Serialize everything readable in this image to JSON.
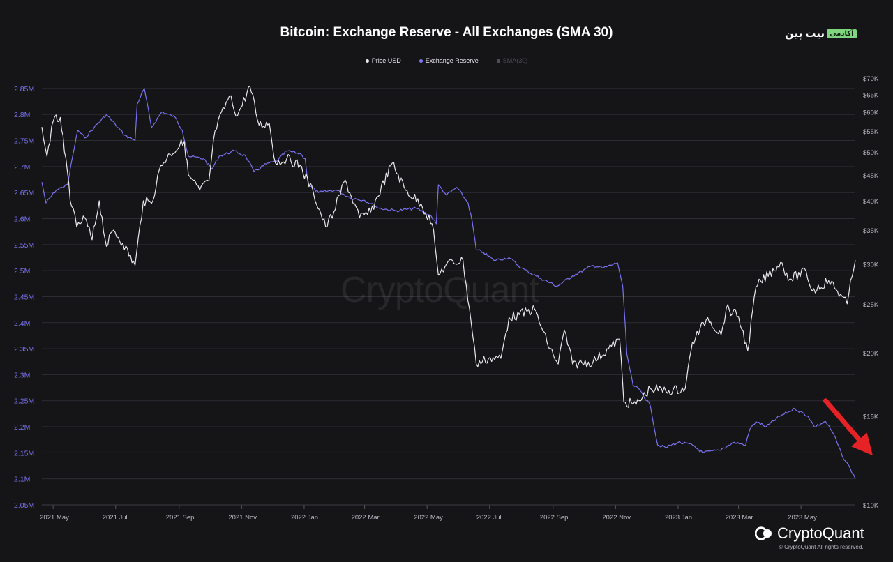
{
  "header": {
    "title": "Bitcoin: Exchange Reserve - All Exchanges (SMA 30)",
    "brand_name": "بیت پین",
    "brand_tag": "آکادمی"
  },
  "watermark": "CryptoQuant",
  "footer": {
    "logo_text": "CryptoQuant",
    "copyright": "© CryptoQuant All rights reserved."
  },
  "colors": {
    "background": "#151518",
    "price": "#e9e9ee",
    "reserve": "#7a73f0",
    "sma": "#4d4d56",
    "grid": "#2c2c33",
    "arrow": "#e52326"
  },
  "chart_data": {
    "type": "line",
    "title": "Bitcoin: Exchange Reserve - All Exchanges (SMA 30)",
    "x_ticks": [
      "2021 May",
      "2021 Jul",
      "2021 Sep",
      "2021 Nov",
      "2022 Jan",
      "2022 Mar",
      "2022 May",
      "2022 Jul",
      "2022 Sep",
      "2022 Nov",
      "2023 Jan",
      "2023 Mar",
      "2023 May"
    ],
    "x_range": [
      "2021-04-20",
      "2023-06-23"
    ],
    "y_left_ticks": [
      "2.05M",
      "2.1M",
      "2.15M",
      "2.2M",
      "2.25M",
      "2.3M",
      "2.35M",
      "2.4M",
      "2.45M",
      "2.5M",
      "2.55M",
      "2.6M",
      "2.65M",
      "2.7M",
      "2.75M",
      "2.8M",
      "2.85M"
    ],
    "y_left_range": [
      2050000,
      2870000
    ],
    "y_right_ticks": [
      "$10K",
      "$15K",
      "$20K",
      "$25K",
      "$30K",
      "$35K",
      "$40K",
      "$45K",
      "$50K",
      "$55K",
      "$60K",
      "$65K",
      "$70K"
    ],
    "y_right_ticks_values": [
      10000,
      15000,
      20000,
      25000,
      30000,
      35000,
      40000,
      45000,
      50000,
      55000,
      60000,
      65000,
      70000
    ],
    "y_right_scale": "log",
    "y_right_range": [
      10000,
      70000
    ],
    "grid": true,
    "legend_position": "top-center",
    "series": [
      {
        "name": "Price USD",
        "axis": "right",
        "marker": "dot",
        "points": [
          [
            "2021-04-20",
            56000
          ],
          [
            "2021-04-25",
            49000
          ],
          [
            "2021-05-01",
            57500
          ],
          [
            "2021-05-08",
            58500
          ],
          [
            "2021-05-12",
            50000
          ],
          [
            "2021-05-19",
            39000
          ],
          [
            "2021-05-24",
            35500
          ],
          [
            "2021-06-01",
            37000
          ],
          [
            "2021-06-08",
            33500
          ],
          [
            "2021-06-15",
            40000
          ],
          [
            "2021-06-22",
            32500
          ],
          [
            "2021-06-29",
            35000
          ],
          [
            "2021-07-08",
            33000
          ],
          [
            "2021-07-20",
            29800
          ],
          [
            "2021-07-28",
            40000
          ],
          [
            "2021-08-05",
            39500
          ],
          [
            "2021-08-14",
            47000
          ],
          [
            "2021-08-23",
            49500
          ],
          [
            "2021-09-06",
            52500
          ],
          [
            "2021-09-10",
            45000
          ],
          [
            "2021-09-21",
            42000
          ],
          [
            "2021-09-30",
            43800
          ],
          [
            "2021-10-06",
            55000
          ],
          [
            "2021-10-20",
            64500
          ],
          [
            "2021-10-28",
            59000
          ],
          [
            "2021-11-09",
            67500
          ],
          [
            "2021-11-18",
            56500
          ],
          [
            "2021-11-28",
            57000
          ],
          [
            "2021-12-04",
            47500
          ],
          [
            "2021-12-15",
            48500
          ],
          [
            "2021-12-28",
            47000
          ],
          [
            "2022-01-10",
            41500
          ],
          [
            "2022-01-22",
            35500
          ],
          [
            "2022-01-30",
            38000
          ],
          [
            "2022-02-10",
            44000
          ],
          [
            "2022-02-24",
            37000
          ],
          [
            "2022-03-07",
            38000
          ],
          [
            "2022-03-28",
            47500
          ],
          [
            "2022-04-10",
            42000
          ],
          [
            "2022-04-25",
            39500
          ],
          [
            "2022-05-06",
            36000
          ],
          [
            "2022-05-10",
            31000
          ],
          [
            "2022-05-12",
            28500
          ],
          [
            "2022-05-20",
            30000
          ],
          [
            "2022-06-05",
            30500
          ],
          [
            "2022-06-13",
            23000
          ],
          [
            "2022-06-18",
            19000
          ],
          [
            "2022-06-30",
            19500
          ],
          [
            "2022-07-12",
            19500
          ],
          [
            "2022-07-20",
            23500
          ],
          [
            "2022-07-30",
            23800
          ],
          [
            "2022-08-14",
            24400
          ],
          [
            "2022-08-26",
            21000
          ],
          [
            "2022-09-06",
            19000
          ],
          [
            "2022-09-12",
            22200
          ],
          [
            "2022-09-20",
            19000
          ],
          [
            "2022-10-10",
            19200
          ],
          [
            "2022-10-28",
            20600
          ],
          [
            "2022-11-05",
            21300
          ],
          [
            "2022-11-09",
            16000
          ],
          [
            "2022-11-21",
            15800
          ],
          [
            "2022-12-05",
            17000
          ],
          [
            "2022-12-20",
            16800
          ],
          [
            "2023-01-08",
            17000
          ],
          [
            "2023-01-15",
            21000
          ],
          [
            "2023-01-30",
            23500
          ],
          [
            "2023-02-12",
            21700
          ],
          [
            "2023-02-17",
            24500
          ],
          [
            "2023-03-01",
            23600
          ],
          [
            "2023-03-10",
            20200
          ],
          [
            "2023-03-18",
            27000
          ],
          [
            "2023-04-11",
            30200
          ],
          [
            "2023-04-20",
            28000
          ],
          [
            "2023-05-06",
            29000
          ],
          [
            "2023-05-12",
            26500
          ],
          [
            "2023-05-28",
            27800
          ],
          [
            "2023-06-10",
            25900
          ],
          [
            "2023-06-15",
            25000
          ],
          [
            "2023-06-20",
            28400
          ],
          [
            "2023-06-23",
            30500
          ]
        ]
      },
      {
        "name": "Exchange Reserve",
        "axis": "left",
        "marker": "diamond",
        "points": [
          [
            "2021-04-20",
            2670000
          ],
          [
            "2021-04-24",
            2630000
          ],
          [
            "2021-05-04",
            2655000
          ],
          [
            "2021-05-15",
            2665000
          ],
          [
            "2021-05-20",
            2720000
          ],
          [
            "2021-05-25",
            2770000
          ],
          [
            "2021-06-01",
            2755000
          ],
          [
            "2021-06-10",
            2775000
          ],
          [
            "2021-06-22",
            2800000
          ],
          [
            "2021-07-01",
            2780000
          ],
          [
            "2021-07-10",
            2760000
          ],
          [
            "2021-07-20",
            2750000
          ],
          [
            "2021-07-22",
            2820000
          ],
          [
            "2021-07-29",
            2850000
          ],
          [
            "2021-08-05",
            2775000
          ],
          [
            "2021-08-15",
            2805000
          ],
          [
            "2021-08-28",
            2795000
          ],
          [
            "2021-09-04",
            2770000
          ],
          [
            "2021-09-10",
            2720000
          ],
          [
            "2021-09-25",
            2715000
          ],
          [
            "2021-10-03",
            2695000
          ],
          [
            "2021-10-10",
            2720000
          ],
          [
            "2021-10-25",
            2730000
          ],
          [
            "2021-11-05",
            2720000
          ],
          [
            "2021-11-13",
            2690000
          ],
          [
            "2021-11-25",
            2705000
          ],
          [
            "2021-12-05",
            2710000
          ],
          [
            "2021-12-15",
            2730000
          ],
          [
            "2021-12-28",
            2725000
          ],
          [
            "2022-01-02",
            2715000
          ],
          [
            "2022-01-05",
            2665000
          ],
          [
            "2022-01-15",
            2650000
          ],
          [
            "2022-02-01",
            2655000
          ],
          [
            "2022-02-15",
            2640000
          ],
          [
            "2022-03-01",
            2635000
          ],
          [
            "2022-03-15",
            2620000
          ],
          [
            "2022-04-01",
            2615000
          ],
          [
            "2022-04-20",
            2620000
          ],
          [
            "2022-05-05",
            2605000
          ],
          [
            "2022-05-10",
            2590000
          ],
          [
            "2022-05-12",
            2665000
          ],
          [
            "2022-05-20",
            2645000
          ],
          [
            "2022-05-30",
            2660000
          ],
          [
            "2022-06-10",
            2630000
          ],
          [
            "2022-06-14",
            2595000
          ],
          [
            "2022-06-18",
            2540000
          ],
          [
            "2022-06-25",
            2535000
          ],
          [
            "2022-07-05",
            2520000
          ],
          [
            "2022-07-20",
            2525000
          ],
          [
            "2022-08-01",
            2505000
          ],
          [
            "2022-08-20",
            2485000
          ],
          [
            "2022-09-05",
            2470000
          ],
          [
            "2022-09-20",
            2490000
          ],
          [
            "2022-10-10",
            2510000
          ],
          [
            "2022-10-20",
            2505000
          ],
          [
            "2022-11-03",
            2515000
          ],
          [
            "2022-11-08",
            2470000
          ],
          [
            "2022-11-12",
            2340000
          ],
          [
            "2022-11-18",
            2280000
          ],
          [
            "2022-11-25",
            2270000
          ],
          [
            "2022-12-05",
            2240000
          ],
          [
            "2022-12-12",
            2165000
          ],
          [
            "2022-12-20",
            2160000
          ],
          [
            "2023-01-01",
            2170000
          ],
          [
            "2023-01-15",
            2165000
          ],
          [
            "2023-01-25",
            2150000
          ],
          [
            "2023-02-10",
            2155000
          ],
          [
            "2023-02-25",
            2170000
          ],
          [
            "2023-03-08",
            2165000
          ],
          [
            "2023-03-12",
            2195000
          ],
          [
            "2023-03-18",
            2210000
          ],
          [
            "2023-03-28",
            2200000
          ],
          [
            "2023-04-10",
            2220000
          ],
          [
            "2023-04-25",
            2235000
          ],
          [
            "2023-05-08",
            2220000
          ],
          [
            "2023-05-14",
            2200000
          ],
          [
            "2023-05-25",
            2210000
          ],
          [
            "2023-06-02",
            2185000
          ],
          [
            "2023-06-10",
            2145000
          ],
          [
            "2023-06-18",
            2120000
          ],
          [
            "2023-06-23",
            2100000
          ]
        ]
      },
      {
        "name": "SMA(30)",
        "axis": "left",
        "marker": "square",
        "visible": false,
        "points": []
      }
    ],
    "annotations": [
      {
        "type": "arrow",
        "color": "#e52326",
        "from": [
          "2023-05-25",
          2250000
        ],
        "to": [
          "2023-07-10",
          2145000
        ]
      }
    ]
  }
}
